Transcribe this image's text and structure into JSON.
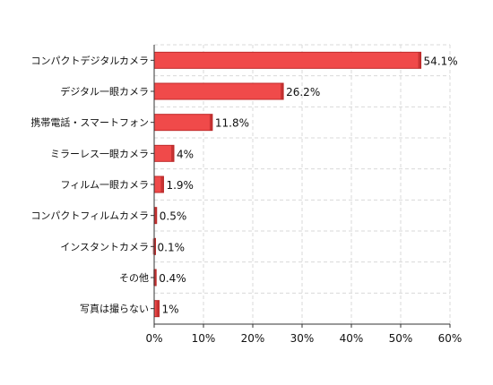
{
  "chart_data": {
    "type": "bar",
    "orientation": "horizontal",
    "categories": [
      "コンパクトデジタルカメラ",
      "デジタル一眼カメラ",
      "携帯電話・スマートフォン",
      "ミラーレス一眼カメラ",
      "フィルム一眼カメラ",
      "コンパクトフィルムカメラ",
      "インスタントカメラ",
      "その他",
      "写真は撮らない"
    ],
    "values": [
      54.1,
      26.2,
      11.8,
      4,
      1.9,
      0.5,
      0.1,
      0.4,
      1
    ],
    "value_labels": [
      "54.1%",
      "26.2%",
      "11.8%",
      "4%",
      "1.9%",
      "0.5%",
      "0.1%",
      "0.4%",
      "1%"
    ],
    "x_ticks": [
      0,
      10,
      20,
      30,
      40,
      50,
      60
    ],
    "x_tick_labels": [
      "0%",
      "10%",
      "20%",
      "30%",
      "40%",
      "50%",
      "60%"
    ],
    "xlim": [
      0,
      60
    ],
    "grid": true,
    "bar_color": "#f04a4a",
    "bar_edge_color": "#c02a2a",
    "grid_color": "#d9d9d9",
    "title": "",
    "xlabel": "",
    "ylabel": ""
  }
}
